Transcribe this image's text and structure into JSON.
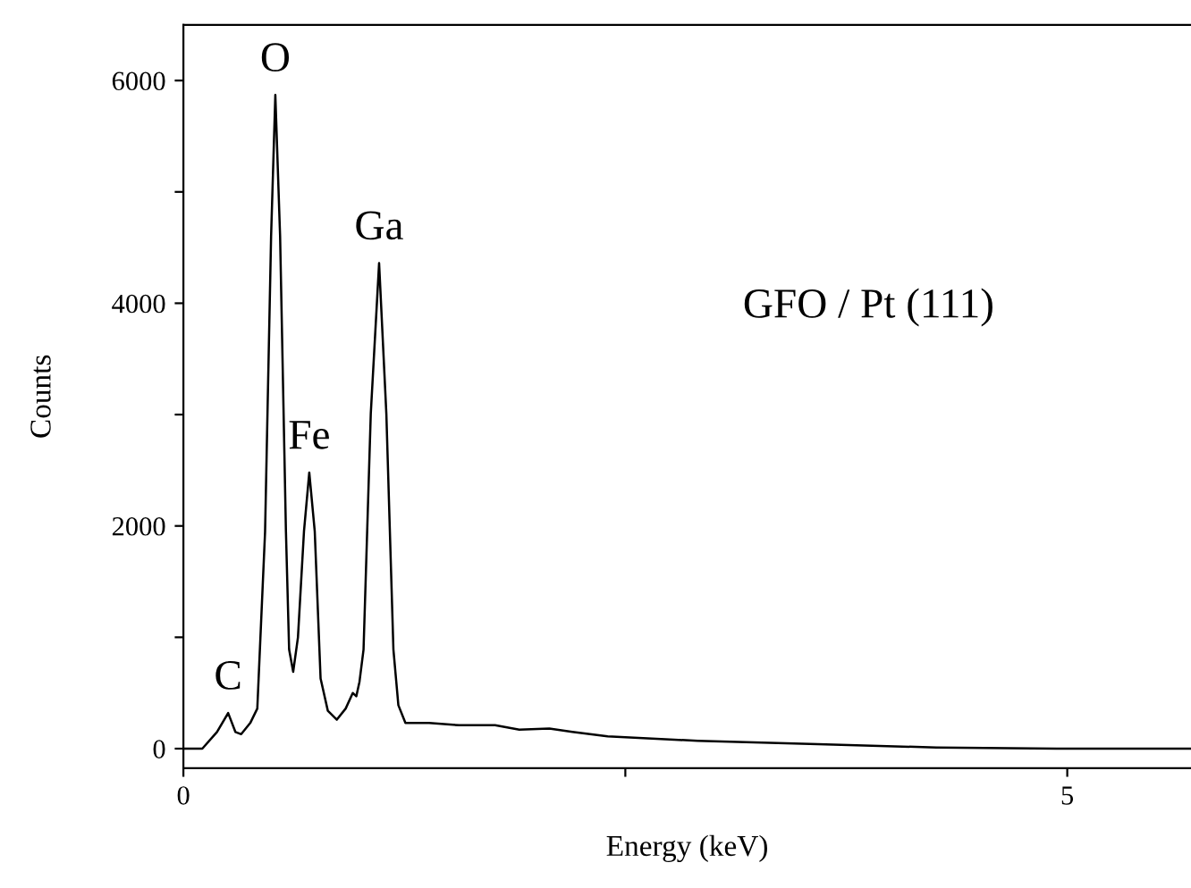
{
  "chart_data": {
    "type": "line",
    "xlabel": "Energy (keV)",
    "ylabel": "Counts",
    "xlim": [
      0,
      5.7
    ],
    "ylim": [
      -175,
      6500
    ],
    "xticks": [
      0,
      {
        "value": 2.5,
        "label": null
      },
      5
    ],
    "yticks": [
      0,
      {
        "value": 1000,
        "label": null
      },
      2000,
      {
        "value": 3000,
        "label": null
      },
      4000,
      {
        "value": 5000,
        "label": null
      },
      6000
    ],
    "grid": false,
    "legend": false,
    "marker": "none",
    "line_style": "solid",
    "series": [
      {
        "color": "#000000",
        "x": [
          0,
          0.107,
          0.19,
          0.253,
          0.294,
          0.327,
          0.378,
          0.418,
          0.462,
          0.496,
          0.52,
          0.547,
          0.58,
          0.598,
          0.621,
          0.648,
          0.682,
          0.712,
          0.743,
          0.776,
          0.817,
          0.868,
          0.918,
          0.958,
          0.978,
          0.996,
          1.019,
          1.06,
          1.107,
          1.148,
          1.188,
          1.216,
          1.256,
          1.39,
          1.56,
          1.763,
          1.9,
          2.07,
          2.2,
          2.4,
          2.91,
          3.59,
          4.26,
          4.94,
          5.7
        ],
        "values": [
          0,
          0,
          150,
          320,
          150,
          130,
          230,
          360,
          1950,
          4600,
          5870,
          4600,
          1950,
          890,
          690,
          1000,
          1950,
          2480,
          1950,
          630,
          340,
          260,
          360,
          500,
          470,
          600,
          890,
          3010,
          4360,
          3010,
          890,
          390,
          230,
          230,
          210,
          210,
          170,
          180,
          150,
          110,
          70,
          40,
          10,
          0,
          0
        ]
      }
    ],
    "annotations": [
      {
        "text": "C",
        "x": 0.253,
        "y": 320
      },
      {
        "text": "O",
        "x": 0.52,
        "y": 5870
      },
      {
        "text": "Fe",
        "x": 0.712,
        "y": 2480
      },
      {
        "text": "Ga",
        "x": 1.107,
        "y": 4360
      },
      "GFO / Pt (111)"
    ]
  }
}
